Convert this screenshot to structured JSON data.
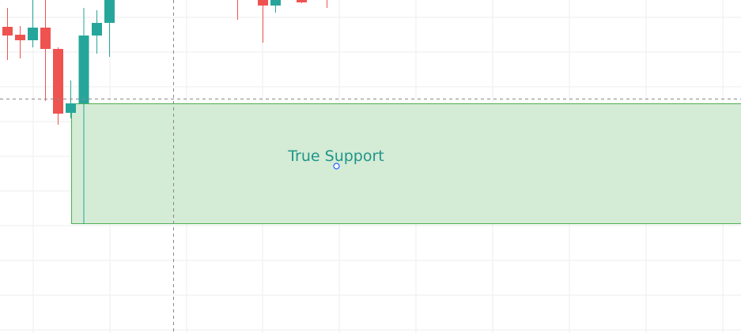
{
  "zone": {
    "label": "True Support",
    "fill_color": "#d4ebd6",
    "border_color": "#4caf50",
    "text_color": "#1e9688",
    "kind": "support rectangle"
  },
  "colors": {
    "up": "#26a69a",
    "down": "#ef5350",
    "grid": "#eeeeee",
    "crosshair": "#888888",
    "anchor": "#2962ff"
  },
  "chart_data": {
    "type": "candlestick",
    "crosshair": true,
    "grid": true,
    "candles": [
      {
        "dir": "down"
      },
      {
        "dir": "down"
      },
      {
        "dir": "up"
      },
      {
        "dir": "down"
      },
      {
        "dir": "down"
      },
      {
        "dir": "up"
      },
      {
        "dir": "up"
      },
      {
        "dir": "up"
      },
      {
        "dir": "up"
      },
      {
        "dir": "down"
      },
      {
        "dir": "down"
      },
      {
        "dir": "up"
      },
      {
        "dir": "down"
      },
      {
        "dir": "down"
      }
    ]
  }
}
